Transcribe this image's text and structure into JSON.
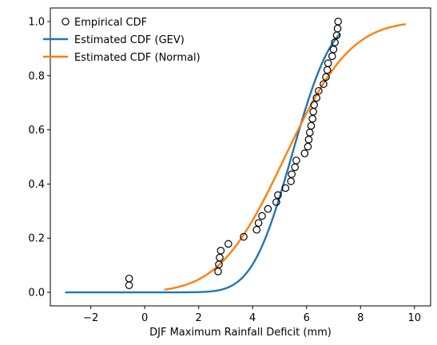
{
  "chart_data": {
    "type": "line",
    "xlabel": "DJF Maximum Rainfall Deficit (mm)",
    "ylabel": "",
    "xlim": [
      -3.5,
      10.6
    ],
    "ylim": [
      -0.05,
      1.05
    ],
    "xticks": [
      -2,
      0,
      2,
      4,
      6,
      8,
      10
    ],
    "yticks": [
      0.0,
      0.2,
      0.4,
      0.6,
      0.8,
      1.0
    ],
    "xtick_labels": [
      "−2",
      "0",
      "2",
      "4",
      "6",
      "8",
      "10"
    ],
    "ytick_labels": [
      "0.0",
      "0.2",
      "0.4",
      "0.6",
      "0.8",
      "1.0"
    ],
    "legend_position": "upper-left",
    "series": [
      {
        "name": "Empirical CDF",
        "kind": "scatter",
        "marker": "hollow-circle",
        "color": "#000000",
        "x": [
          -0.58,
          -0.58,
          2.72,
          2.75,
          2.78,
          2.82,
          3.1,
          3.67,
          4.15,
          4.22,
          4.35,
          4.57,
          4.88,
          4.94,
          5.22,
          5.42,
          5.45,
          5.57,
          5.62,
          5.93,
          6.05,
          6.08,
          6.12,
          6.17,
          6.22,
          6.25,
          6.28,
          6.37,
          6.45,
          6.63,
          6.72,
          6.77,
          6.8,
          6.95,
          7.0,
          7.05,
          7.12,
          7.15,
          7.17
        ],
        "y": [
          0.026,
          0.051,
          0.077,
          0.103,
          0.128,
          0.154,
          0.179,
          0.205,
          0.231,
          0.256,
          0.282,
          0.308,
          0.333,
          0.359,
          0.385,
          0.41,
          0.436,
          0.462,
          0.487,
          0.513,
          0.538,
          0.564,
          0.59,
          0.615,
          0.641,
          0.667,
          0.692,
          0.718,
          0.744,
          0.769,
          0.795,
          0.821,
          0.846,
          0.872,
          0.897,
          0.923,
          0.949,
          0.974,
          1.0
        ]
      },
      {
        "name": "Estimated CDF (GEV)",
        "kind": "line",
        "color": "#1f77b4",
        "dist": "gev",
        "params": {
          "loc": 5.05,
          "scale": 1.12,
          "xi": 0.32
        },
        "x_range": [
          -2.95,
          7.25
        ]
      },
      {
        "name": "Estimated CDF (Normal)",
        "kind": "line",
        "color": "#ff7f0e",
        "dist": "normal",
        "params": {
          "mu": 5.2,
          "sigma": 1.92
        },
        "x_range": [
          0.72,
          9.68
        ]
      }
    ]
  }
}
